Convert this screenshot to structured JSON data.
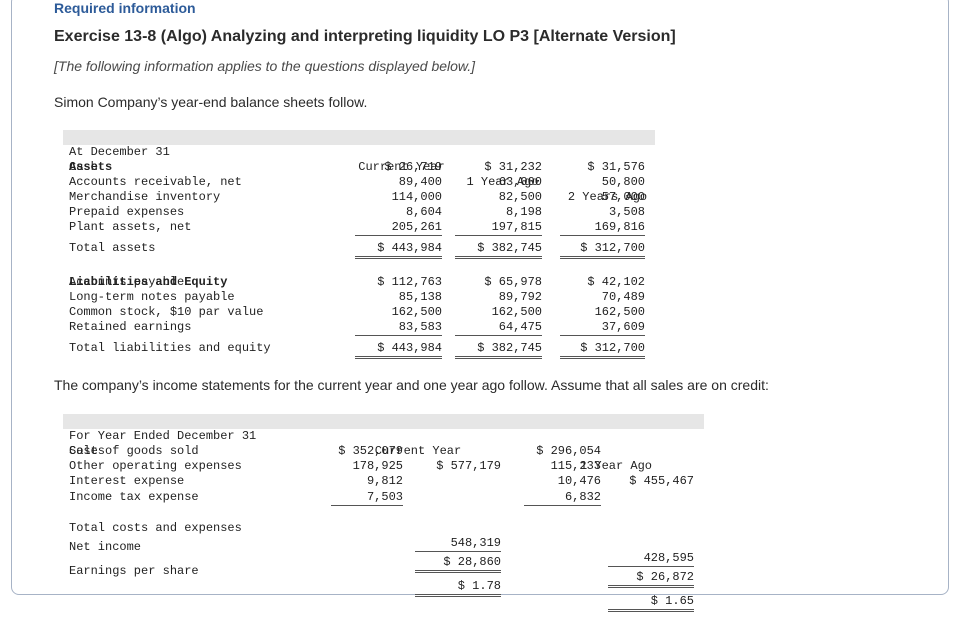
{
  "header": {
    "required": "Required information",
    "title": "Exercise 13-8 (Algo) Analyzing and interpreting liquidity LO P3 [Alternate Version]",
    "note": "[The following information applies to the questions displayed below.]"
  },
  "balance_intro": "Simon Company’s year-end balance sheets follow.",
  "balance": {
    "col_label": "At December 31",
    "cols": [
      "Current Year",
      "1 Year Ago",
      "2 Years Ago"
    ],
    "assets_heading": "Assets",
    "rows": [
      {
        "label": "Cash",
        "v": [
          "$ 26,719",
          "$ 31,232",
          "$ 31,576"
        ]
      },
      {
        "label": "Accounts receivable, net",
        "v": [
          "89,400",
          "63,000",
          "50,800"
        ]
      },
      {
        "label": "Merchandise inventory",
        "v": [
          "114,000",
          "82,500",
          "57,000"
        ]
      },
      {
        "label": "Prepaid expenses",
        "v": [
          "8,604",
          "8,198",
          "3,508"
        ]
      },
      {
        "label": "Plant assets, net",
        "v": [
          "205,261",
          "197,815",
          "169,816"
        ]
      },
      {
        "label": "Total assets",
        "v": [
          "$ 443,984",
          "$ 382,745",
          "$ 312,700"
        ]
      }
    ],
    "liab_heading": "Liabilities and Equity",
    "liab_rows": [
      {
        "label": "Accounts payable",
        "v": [
          "$ 112,763",
          "$ 65,978",
          "$ 42,102"
        ]
      },
      {
        "label": "Long-term notes payable",
        "v": [
          "85,138",
          "89,792",
          "70,489"
        ]
      },
      {
        "label": "Common stock, $10 par value",
        "v": [
          "162,500",
          "162,500",
          "162,500"
        ]
      },
      {
        "label": "Retained earnings",
        "v": [
          "83,583",
          "64,475",
          "37,609"
        ]
      },
      {
        "label": "Total liabilities and equity",
        "v": [
          "$ 443,984",
          "$ 382,745",
          "$ 312,700"
        ]
      }
    ]
  },
  "income_intro": "The company’s income statements for the current year and one year ago follow. Assume that all sales are on credit:",
  "income": {
    "col_label": "For Year Ended December 31",
    "cols": [
      "Current Year",
      "1 Year Ago"
    ],
    "sales": {
      "label": "Sales",
      "cur": "$ 577,179",
      "prev": "$ 455,467"
    },
    "expenses": [
      {
        "label": "Cost of goods sold",
        "cur": "$ 352,079",
        "prev": "$ 296,054"
      },
      {
        "label": "Other operating expenses",
        "cur": "178,925",
        "prev": "115,233"
      },
      {
        "label": "Interest expense",
        "cur": "9,812",
        "prev": "10,476"
      },
      {
        "label": "Income tax expense",
        "cur": "7,503",
        "prev": "6,832"
      }
    ],
    "total": {
      "label": "Total costs and expenses",
      "cur": "548,319",
      "prev": "428,595"
    },
    "net": {
      "label": "Net income",
      "cur": "$ 28,860",
      "prev": "$ 26,872"
    },
    "eps": {
      "label": "Earnings per share",
      "cur": "$ 1.78",
      "prev": "$ 1.65"
    }
  }
}
